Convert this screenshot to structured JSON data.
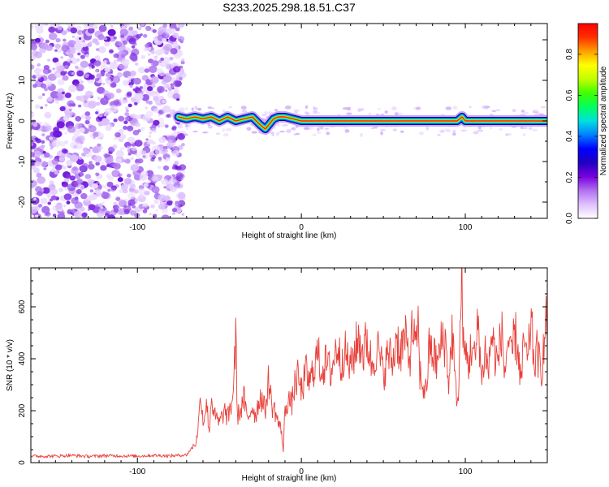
{
  "figure": {
    "title": "S233.2025.298.18.51.C37"
  },
  "chart_data": [
    {
      "type": "heatmap",
      "title": "S233.2025.298.18.51.C37",
      "xlabel": "Height of straight line (km)",
      "ylabel": "Frequency (Hz)",
      "xlim": [
        -165,
        150
      ],
      "ylim": [
        -24,
        24
      ],
      "xticks": [
        -100,
        0,
        100
      ],
      "xtick_labels": [
        "-100",
        "0",
        "100"
      ],
      "yticks": [
        -20,
        -10,
        0,
        10,
        20
      ],
      "ytick_labels": [
        "-20",
        "-10",
        "0",
        "10",
        "20"
      ],
      "grid": false,
      "noise_region_x": [
        -165,
        -72
      ],
      "signal_region_x": [
        -72,
        150
      ],
      "ridge": {
        "x": [
          -75,
          -70,
          -65,
          -60,
          -55,
          -50,
          -45,
          -40,
          -35,
          -30,
          -25,
          -22,
          -20,
          -17,
          -14,
          -10,
          -5,
          0,
          20,
          40,
          60,
          80,
          95,
          98,
          100,
          120,
          150
        ],
        "freq_hz": [
          1,
          0.5,
          1,
          0.5,
          1,
          0,
          1,
          0,
          0.5,
          1,
          -1,
          -2,
          -1,
          0.5,
          1,
          1,
          0.5,
          0,
          0,
          0,
          0,
          0,
          0,
          1,
          0,
          0,
          0
        ]
      },
      "colorbar": {
        "label": "Normalized spectral amplitude",
        "range": [
          0,
          0.95
        ],
        "ticks": [
          0.0,
          0.2,
          0.4,
          0.6,
          0.8
        ],
        "tick_labels": [
          "0.0",
          "0.2",
          "0.4",
          "0.6",
          "0.8"
        ],
        "colors": [
          "#ffffff",
          "#e0c0ff",
          "#b070f0",
          "#7a00e0",
          "#2000c0",
          "#0000ff",
          "#0080ff",
          "#00e0e0",
          "#00ff60",
          "#40ff00",
          "#c0ff00",
          "#ffff00",
          "#ffa000",
          "#ff3000",
          "#ff0000"
        ]
      }
    },
    {
      "type": "line",
      "xlabel": "Height of straight line (km)",
      "ylabel": "SNR (10 * v/v)",
      "xlim": [
        -165,
        150
      ],
      "ylim": [
        0,
        750
      ],
      "xticks": [
        -100,
        0,
        100
      ],
      "xtick_labels": [
        "-100",
        "0",
        "100"
      ],
      "yticks": [
        0,
        200,
        400,
        600
      ],
      "ytick_labels": [
        "0",
        "200",
        "400",
        "600"
      ],
      "grid": false,
      "color": "#e8403a",
      "series": [
        {
          "name": "SNR",
          "x": [
            -165,
            -150,
            -140,
            -130,
            -120,
            -110,
            -100,
            -90,
            -80,
            -70,
            -64,
            -61,
            -60,
            -58,
            -56,
            -55,
            -53,
            -50,
            -47,
            -45,
            -42,
            -40,
            -39,
            -37,
            -35,
            -33,
            -30,
            -28,
            -25,
            -22,
            -20,
            -18,
            -16,
            -14,
            -12,
            -11,
            -10,
            -8,
            -6,
            -4,
            -2,
            0,
            3,
            5,
            8,
            10,
            12,
            15,
            18,
            20,
            22,
            24,
            26,
            28,
            30,
            32,
            35,
            38,
            40,
            43,
            46,
            48,
            50,
            53,
            56,
            58,
            60,
            63,
            66,
            68,
            70,
            71,
            72,
            74,
            76,
            78,
            80,
            83,
            86,
            88,
            90,
            92,
            94,
            96,
            97,
            98,
            99,
            100,
            102,
            104,
            106,
            108,
            110,
            112,
            114,
            116,
            118,
            120,
            122,
            124,
            126,
            128,
            130,
            132,
            134,
            136,
            138,
            140,
            142,
            144,
            146,
            148,
            150
          ],
          "y": [
            25,
            25,
            28,
            24,
            27,
            26,
            25,
            28,
            26,
            30,
            80,
            270,
            150,
            230,
            120,
            260,
            180,
            150,
            200,
            170,
            240,
            480,
            180,
            200,
            250,
            160,
            220,
            180,
            260,
            200,
            320,
            220,
            200,
            150,
            120,
            40,
            200,
            250,
            220,
            300,
            330,
            270,
            350,
            300,
            380,
            420,
            360,
            380,
            350,
            400,
            460,
            380,
            430,
            400,
            360,
            420,
            480,
            420,
            480,
            370,
            450,
            400,
            340,
            420,
            380,
            500,
            420,
            480,
            400,
            530,
            400,
            590,
            350,
            300,
            270,
            440,
            420,
            380,
            480,
            460,
            300,
            520,
            280,
            250,
            560,
            750,
            400,
            420,
            380,
            460,
            380,
            560,
            300,
            450,
            340,
            500,
            420,
            380,
            520,
            340,
            480,
            380,
            500,
            450,
            300,
            480,
            360,
            560,
            380,
            430,
            340,
            450,
            580
          ]
        }
      ]
    }
  ]
}
